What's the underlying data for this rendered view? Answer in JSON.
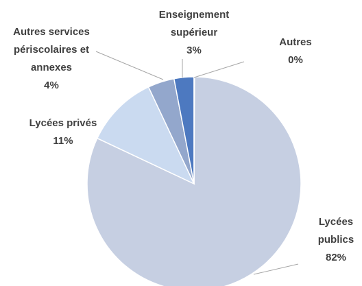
{
  "chart_data": {
    "type": "pie",
    "categories": [
      "Lycées publics",
      "Lycées privés",
      "Autres services périscolaires et annexes",
      "Enseignement supérieur",
      "Autres"
    ],
    "values": [
      82,
      11,
      4,
      3,
      0
    ],
    "value_labels": [
      "82%",
      "11%",
      "4%",
      "3%",
      "0%"
    ],
    "colors": [
      "#c6cfe2",
      "#cadaf0",
      "#93a7cc",
      "#4d79c0",
      "#a9c0e0"
    ]
  }
}
